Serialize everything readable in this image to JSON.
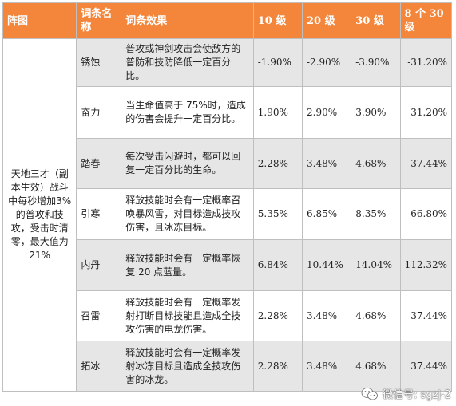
{
  "table": {
    "headers": [
      "阵图",
      "词条名称",
      "词条效果",
      "10 级",
      "20 级",
      "30 级",
      "8 个 30 级"
    ],
    "set_description": "天地三才（副本生效）战斗中每秒增加3%的普攻和技攻，受击时清零，最大值为 21%",
    "rows": [
      {
        "name": "锈蚀",
        "effect": "普攻或神剑攻击会使敌方的普防和技防降低一定百分比。",
        "lv10": "-1.90%",
        "lv20": "-2.90%",
        "lv30": "-3.90%",
        "x8": "-31.20%"
      },
      {
        "name": "奋力",
        "effect": "当生命值高于 75%时，造成的伤害会提升一定百分比。",
        "lv10": "1.90%",
        "lv20": "2.90%",
        "lv30": "3.90%",
        "x8": "31.20%"
      },
      {
        "name": "踏春",
        "effect": "每次受击闪避时，都可以回复一定百分比的生命。",
        "lv10": "2.28%",
        "lv20": "3.48%",
        "lv30": "4.68%",
        "x8": "37.44%"
      },
      {
        "name": "引寒",
        "effect": "释放技能时会有一定概率召唤暴风雪，对目标造成技攻伤害，且冰冻目标。",
        "lv10": "5.35%",
        "lv20": "6.85%",
        "lv30": "8.35%",
        "x8": "66.80%"
      },
      {
        "name": "内丹",
        "effect": "释放技能时会有一定概率恢复 20 点蓝量。",
        "lv10": "6.84%",
        "lv20": "10.44%",
        "lv30": "14.04%",
        "x8": "112.32%"
      },
      {
        "name": "召雷",
        "effect": "释放技能时会有一定概率发射打断目标技能且造成全技攻伤害的电龙伤害。",
        "lv10": "2.28%",
        "lv20": "3.48%",
        "lv30": "4.68%",
        "x8": "37.44%"
      },
      {
        "name": "拓冰",
        "effect": "释放技能时会有一定概率发射冰冻目标且造成全技攻伤害的冰龙。",
        "lv10": "2.28%",
        "lv20": "3.48%",
        "lv30": "4.68%",
        "x8": "37.44%"
      }
    ]
  },
  "watermark": {
    "text": "微信号: sgzj-2",
    "icon": "wechat-icon"
  },
  "colors": {
    "header_bg": "#f4863b",
    "row_gray": "#e6e6e6",
    "border": "#bfbfbf"
  }
}
